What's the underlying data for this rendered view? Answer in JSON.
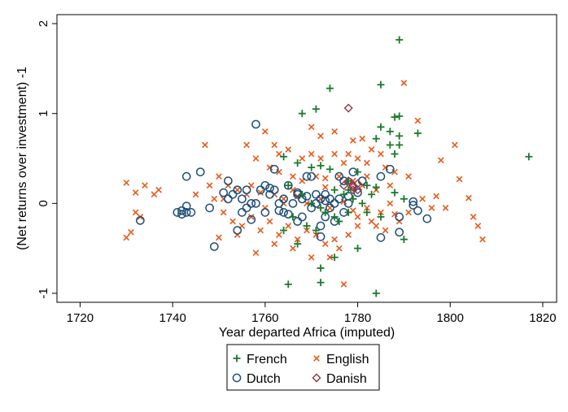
{
  "chart_data": {
    "type": "scatter",
    "xlabel": "Year departed Africa (imputed)",
    "ylabel": "(Net returns over investment) -1",
    "xlim": [
      1715,
      1823
    ],
    "ylim": [
      -1.1,
      2.1
    ],
    "xticks": [
      1720,
      1740,
      1760,
      1780,
      1800,
      1820
    ],
    "yticks": [
      -1,
      0,
      1,
      2
    ],
    "grid": false,
    "legend_position": "bottom",
    "colors": {
      "French": "#1a7a2a",
      "English": "#e8591a",
      "Dutch": "#1f4e79",
      "Danish": "#8b3a4a"
    },
    "series": [
      {
        "name": "French",
        "marker": "plus",
        "points": [
          [
            1765,
            -0.9
          ],
          [
            1784,
            -1.0
          ],
          [
            1772,
            -0.88
          ],
          [
            1772,
            -0.72
          ],
          [
            1775,
            -0.6
          ],
          [
            1767,
            -0.45
          ],
          [
            1780,
            -0.5
          ],
          [
            1789,
            1.82
          ],
          [
            1774,
            1.28
          ],
          [
            1771,
            1.05
          ],
          [
            1768,
            1.0
          ],
          [
            1785,
            1.32
          ],
          [
            1788,
            0.96
          ],
          [
            1789,
            0.97
          ],
          [
            1785,
            0.85
          ],
          [
            1787,
            0.8
          ],
          [
            1789,
            0.75
          ],
          [
            1793,
            0.78
          ],
          [
            1787,
            0.65
          ],
          [
            1789,
            0.65
          ],
          [
            1784,
            0.72
          ],
          [
            1788,
            0.55
          ],
          [
            1817,
            0.52
          ],
          [
            1764,
            0.52
          ],
          [
            1767,
            0.45
          ],
          [
            1770,
            0.4
          ],
          [
            1772,
            0.42
          ],
          [
            1774,
            0.38
          ],
          [
            1778,
            0.25
          ],
          [
            1780,
            0.35
          ],
          [
            1782,
            0.2
          ],
          [
            1784,
            0.18
          ],
          [
            1788,
            0.12
          ],
          [
            1790,
            0.05
          ],
          [
            1765,
            0.2
          ],
          [
            1768,
            0.1
          ],
          [
            1770,
            0.0
          ],
          [
            1772,
            -0.05
          ],
          [
            1775,
            -0.15
          ],
          [
            1777,
            0.1
          ],
          [
            1779,
            0.05
          ],
          [
            1782,
            -0.1
          ],
          [
            1785,
            -0.15
          ],
          [
            1790,
            -0.4
          ],
          [
            1764,
            -0.3
          ],
          [
            1769,
            -0.25
          ],
          [
            1771,
            -0.3
          ],
          [
            1773,
            -0.1
          ],
          [
            1776,
            -0.2
          ],
          [
            1778,
            -0.1
          ],
          [
            1781,
            0.0
          ],
          [
            1783,
            0.1
          ],
          [
            1766,
            -0.15
          ],
          [
            1775,
            0.15
          ],
          [
            1778,
            0.15
          ]
        ]
      },
      {
        "name": "English",
        "marker": "x",
        "points": [
          [
            1730,
            0.23
          ],
          [
            1732,
            0.12
          ],
          [
            1734,
            0.2
          ],
          [
            1736,
            0.1
          ],
          [
            1737,
            0.15
          ],
          [
            1730,
            -0.38
          ],
          [
            1731,
            -0.32
          ],
          [
            1732,
            -0.1
          ],
          [
            1733,
            -0.15
          ],
          [
            1747,
            0.65
          ],
          [
            1790,
            1.34
          ],
          [
            1793,
            0.92
          ],
          [
            1801,
            0.65
          ],
          [
            1798,
            0.48
          ],
          [
            1802,
            0.27
          ],
          [
            1804,
            0.06
          ],
          [
            1797,
            0.08
          ],
          [
            1799,
            -0.05
          ],
          [
            1805,
            -0.15
          ],
          [
            1806,
            -0.25
          ],
          [
            1807,
            -0.4
          ],
          [
            1777,
            -0.9
          ],
          [
            1774,
            -0.6
          ],
          [
            1770,
            0.85
          ],
          [
            1772,
            0.75
          ],
          [
            1775,
            0.8
          ],
          [
            1779,
            0.7
          ],
          [
            1781,
            0.72
          ],
          [
            1783,
            0.6
          ],
          [
            1785,
            0.55
          ],
          [
            1778,
            0.55
          ],
          [
            1760,
            0.8
          ],
          [
            1762,
            0.65
          ],
          [
            1763,
            0.55
          ],
          [
            1765,
            0.6
          ],
          [
            1768,
            0.5
          ],
          [
            1770,
            0.55
          ],
          [
            1772,
            0.5
          ],
          [
            1775,
            0.55
          ],
          [
            1777,
            0.45
          ],
          [
            1780,
            0.5
          ],
          [
            1782,
            0.45
          ],
          [
            1786,
            0.4
          ],
          [
            1788,
            0.35
          ],
          [
            1791,
            0.3
          ],
          [
            1756,
            0.65
          ],
          [
            1758,
            0.5
          ],
          [
            1761,
            0.4
          ],
          [
            1763,
            0.35
          ],
          [
            1766,
            0.3
          ],
          [
            1768,
            0.25
          ],
          [
            1771,
            0.3
          ],
          [
            1773,
            0.28
          ],
          [
            1776,
            0.3
          ],
          [
            1779,
            0.25
          ],
          [
            1781,
            0.2
          ],
          [
            1784,
            0.15
          ],
          [
            1787,
            0.2
          ],
          [
            1750,
            0.3
          ],
          [
            1752,
            0.2
          ],
          [
            1754,
            0.15
          ],
          [
            1756,
            0.1
          ],
          [
            1759,
            0.12
          ],
          [
            1762,
            0.1
          ],
          [
            1764,
            0.05
          ],
          [
            1767,
            0.08
          ],
          [
            1769,
            0.0
          ],
          [
            1772,
            0.05
          ],
          [
            1774,
            -0.05
          ],
          [
            1777,
            0.02
          ],
          [
            1779,
            -0.08
          ],
          [
            1782,
            -0.05
          ],
          [
            1785,
            -0.1
          ],
          [
            1788,
            -0.12
          ],
          [
            1751,
            -0.1
          ],
          [
            1753,
            -0.2
          ],
          [
            1755,
            -0.25
          ],
          [
            1757,
            -0.15
          ],
          [
            1759,
            -0.3
          ],
          [
            1761,
            -0.2
          ],
          [
            1763,
            -0.35
          ],
          [
            1765,
            -0.25
          ],
          [
            1767,
            -0.4
          ],
          [
            1769,
            -0.3
          ],
          [
            1771,
            -0.35
          ],
          [
            1773,
            -0.45
          ],
          [
            1776,
            -0.5
          ],
          [
            1778,
            -0.35
          ],
          [
            1780,
            -0.25
          ],
          [
            1783,
            -0.2
          ],
          [
            1786,
            -0.3
          ],
          [
            1789,
            -0.2
          ],
          [
            1750,
            -0.38
          ],
          [
            1754,
            -0.35
          ],
          [
            1758,
            -0.55
          ],
          [
            1762,
            -0.45
          ],
          [
            1766,
            -0.5
          ],
          [
            1770,
            -0.6
          ],
          [
            1775,
            -0.4
          ],
          [
            1780,
            -0.15
          ],
          [
            1784,
            -0.25
          ],
          [
            1787,
            0.0
          ],
          [
            1791,
            -0.1
          ],
          [
            1749,
            0.05
          ],
          [
            1760,
            -0.05
          ],
          [
            1766,
            0.15
          ],
          [
            1773,
            0.18
          ],
          [
            1782,
            0.3
          ],
          [
            1764,
            0.0
          ],
          [
            1757,
            0.2
          ],
          [
            1745,
            0.1
          ],
          [
            1748,
            0.2
          ],
          [
            1751,
            0.05
          ],
          [
            1794,
            0.05
          ],
          [
            1796,
            -0.05
          ]
        ]
      },
      {
        "name": "Dutch",
        "marker": "circle",
        "points": [
          [
            1733,
            -0.19
          ],
          [
            1741,
            -0.1
          ],
          [
            1742,
            -0.12
          ],
          [
            1743,
            -0.1
          ],
          [
            1744,
            -0.1
          ],
          [
            1742,
            -0.08
          ],
          [
            1743,
            -0.03
          ],
          [
            1743,
            0.3
          ],
          [
            1746,
            0.35
          ],
          [
            1748,
            -0.05
          ],
          [
            1749,
            -0.48
          ],
          [
            1751,
            0.12
          ],
          [
            1752,
            0.25
          ],
          [
            1752,
            0.05
          ],
          [
            1753,
            0.1
          ],
          [
            1754,
            0.15
          ],
          [
            1755,
            0.05
          ],
          [
            1756,
            -0.05
          ],
          [
            1756,
            0.15
          ],
          [
            1757,
            -0.18
          ],
          [
            1758,
            0.88
          ],
          [
            1758,
            0.0
          ],
          [
            1759,
            0.15
          ],
          [
            1760,
            0.2
          ],
          [
            1761,
            0.1
          ],
          [
            1762,
            0.15
          ],
          [
            1762,
            0.38
          ],
          [
            1763,
            -0.08
          ],
          [
            1764,
            -0.1
          ],
          [
            1764,
            0.05
          ],
          [
            1765,
            -0.12
          ],
          [
            1765,
            0.2
          ],
          [
            1766,
            0.0
          ],
          [
            1767,
            -0.2
          ],
          [
            1767,
            0.1
          ],
          [
            1768,
            0.05
          ],
          [
            1768,
            -0.15
          ],
          [
            1769,
            0.08
          ],
          [
            1769,
            0.3
          ],
          [
            1770,
            0.3
          ],
          [
            1770,
            -0.05
          ],
          [
            1771,
            0.1
          ],
          [
            1771,
            0.0
          ],
          [
            1772,
            0.05
          ],
          [
            1772,
            -0.25
          ],
          [
            1772,
            -0.37
          ],
          [
            1773,
            0.1
          ],
          [
            1773,
            -0.15
          ],
          [
            1774,
            -0.05
          ],
          [
            1774,
            0.05
          ],
          [
            1775,
            0.0
          ],
          [
            1775,
            -0.2
          ],
          [
            1776,
            0.05
          ],
          [
            1776,
            0.3
          ],
          [
            1777,
            0.25
          ],
          [
            1778,
            0.08
          ],
          [
            1778,
            0.0
          ],
          [
            1779,
            0.35
          ],
          [
            1780,
            0.12
          ],
          [
            1781,
            0.25
          ],
          [
            1785,
            0.3
          ],
          [
            1785,
            -0.38
          ],
          [
            1787,
            0.38
          ],
          [
            1789,
            -0.15
          ],
          [
            1789,
            -0.32
          ],
          [
            1792,
            0.02
          ],
          [
            1792,
            -0.02
          ],
          [
            1793,
            -0.08
          ],
          [
            1795,
            -0.17
          ],
          [
            1754,
            -0.3
          ],
          [
            1757,
            0.0
          ],
          [
            1760,
            -0.1
          ],
          [
            1763,
            0.0
          ],
          [
            1755,
            -0.1
          ],
          [
            1761,
            0.17
          ],
          [
            1767,
            0.12
          ],
          [
            1773,
            0.03
          ],
          [
            1777,
            -0.1
          ]
        ]
      },
      {
        "name": "Danish",
        "marker": "diamond",
        "points": [
          [
            1778,
            1.06
          ],
          [
            1779,
            0.15
          ],
          [
            1779,
            0.2
          ],
          [
            1778,
            0.25
          ],
          [
            1780,
            0.22
          ],
          [
            1779,
            0.18
          ],
          [
            1780,
            0.15
          ],
          [
            1777,
            0.2
          ]
        ]
      }
    ]
  },
  "legend": {
    "items": [
      {
        "label": "French"
      },
      {
        "label": "English"
      },
      {
        "label": "Dutch"
      },
      {
        "label": "Danish"
      }
    ]
  }
}
